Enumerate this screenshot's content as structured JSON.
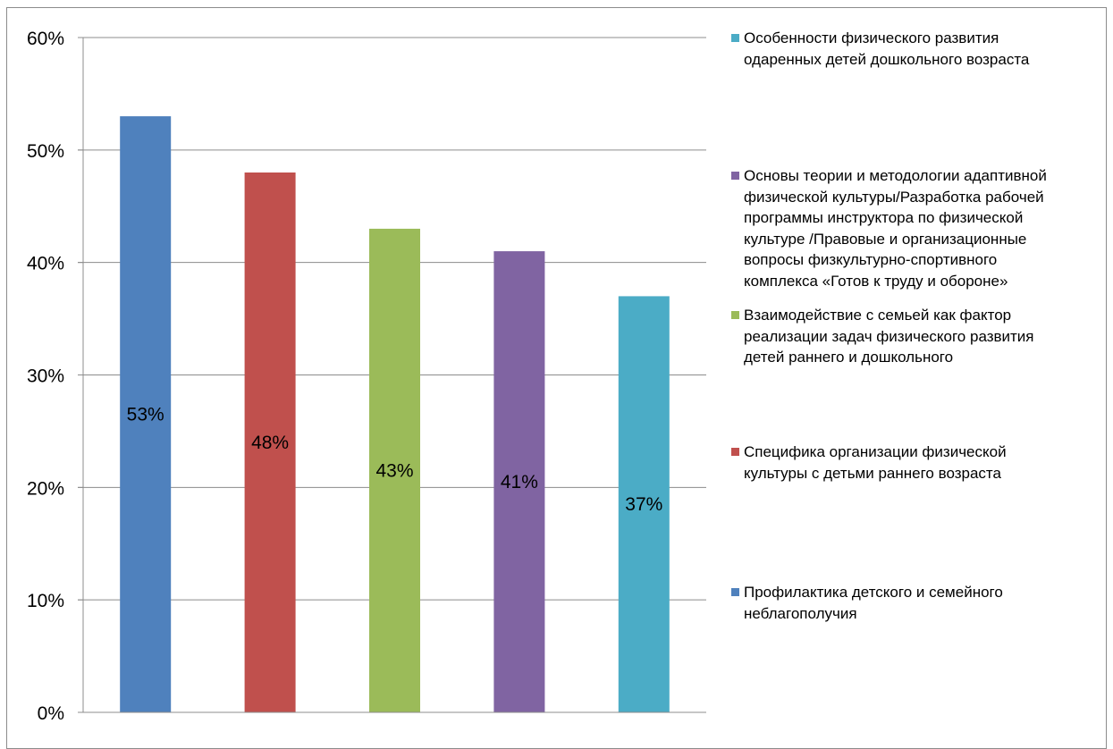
{
  "chart_data": {
    "type": "bar",
    "title": "",
    "xlabel": "",
    "ylabel": "",
    "ylim": [
      0,
      0.6
    ],
    "y_ticks": [
      "0%",
      "10%",
      "20%",
      "30%",
      "40%",
      "50%",
      "60%"
    ],
    "grid": true,
    "legend_position": "right",
    "bars": [
      {
        "value": 0.53,
        "label": "53%",
        "color": "#4F81BD"
      },
      {
        "value": 0.48,
        "label": "48%",
        "color": "#C0504D"
      },
      {
        "value": 0.43,
        "label": "43%",
        "color": "#9BBB59"
      },
      {
        "value": 0.41,
        "label": "41%",
        "color": "#8064A2"
      },
      {
        "value": 0.37,
        "label": "37%",
        "color": "#4BACC6"
      }
    ],
    "legend": [
      {
        "text": "Особенности физического развития\nодаренных детей дошкольного возраста",
        "color": "#4BACC6"
      },
      {
        "text": "Основы теории и методологии адаптивной\nфизической культуры/Разработка рабочей\nпрограммы инструктора по физической\nкультуре /Правовые и организационные\nвопросы физкультурно-спортивного\nкомплекса «Готов к труду и обороне»",
        "color": "#8064A2"
      },
      {
        "text": "Взаимодействие с семьей как фактор\nреализации задач физического развития\nдетей раннего и дошкольного",
        "color": "#9BBB59"
      },
      {
        "text": "Специфика организации физической\nкультуры с детьми раннего возраста",
        "color": "#C0504D"
      },
      {
        "text": "Профилактика детского и семейного\nнеблагополучия",
        "color": "#4F81BD"
      }
    ]
  }
}
